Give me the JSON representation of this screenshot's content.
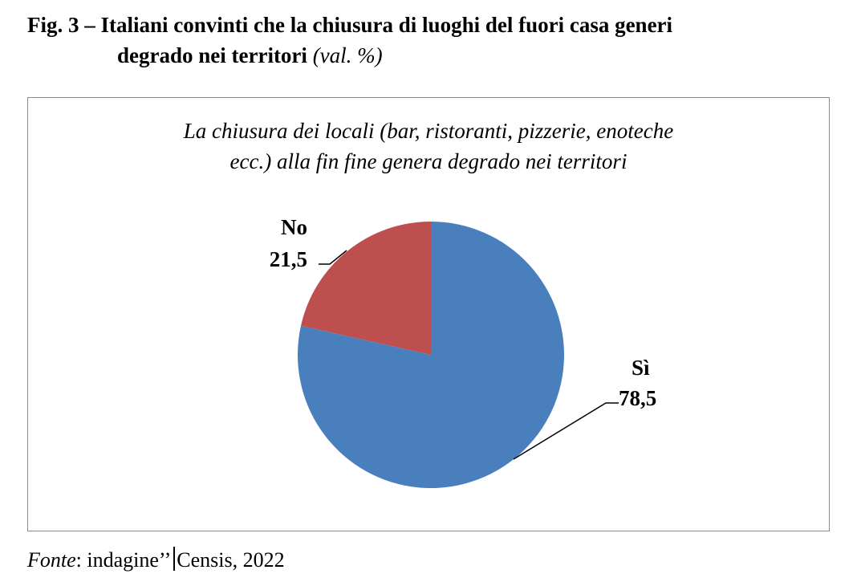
{
  "figure": {
    "title_line1": "Fig. 3 – Italiani convinti che la chiusura di luoghi del fuori casa generi",
    "title_line2": "degrado nei territori",
    "title_unit": "(val. %)"
  },
  "chart_data": {
    "type": "pie",
    "title_lines": [
      "La chiusura dei locali (bar, ristoranti, pizzerie, enoteche",
      "ecc.) alla fin fine genera degrado nei territori"
    ],
    "slices": [
      {
        "label": "Sì",
        "value": 78.5,
        "display_value": "78,5",
        "color": "#4a7fbd"
      },
      {
        "label": "No",
        "value": 21.5,
        "display_value": "21,5",
        "color": "#bd4f4e"
      }
    ],
    "start_angle_deg": 0,
    "direction": "clockwise",
    "legend": "none",
    "data_labels": "outside with leader lines"
  },
  "source": {
    "prefix": "Fonte",
    "text_before_bar": ": indagine’’",
    "text_after_bar": "Censis, 2022"
  }
}
